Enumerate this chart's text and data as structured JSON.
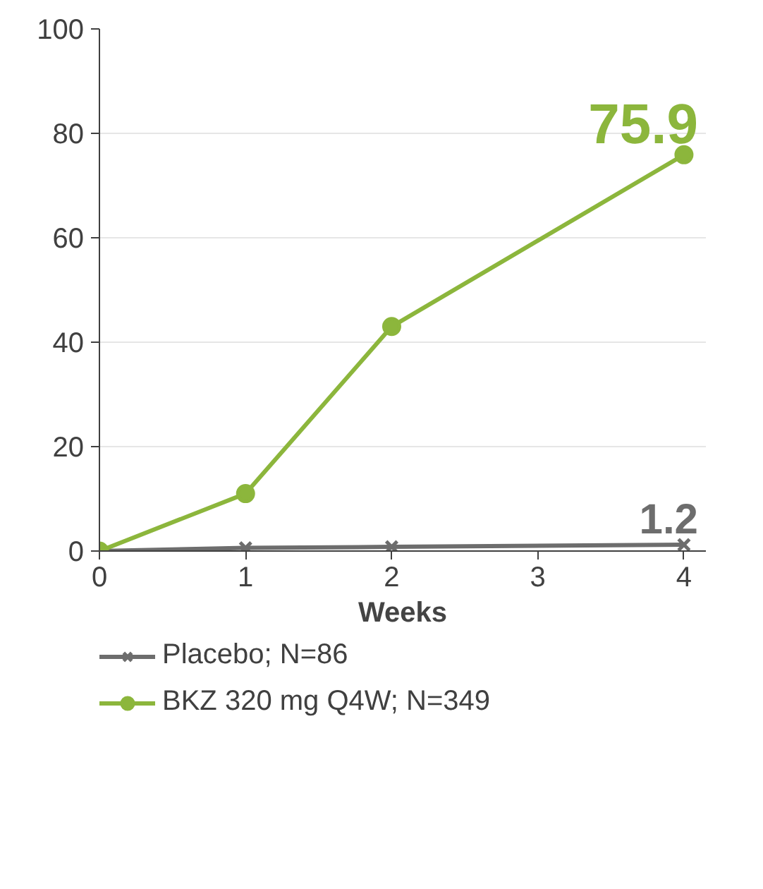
{
  "chart_data": {
    "type": "line",
    "xlabel": "Weeks",
    "x": [
      0,
      1,
      2,
      4
    ],
    "series": [
      {
        "name": "Placebo; N=86",
        "color": "#6d6d6d",
        "values": [
          0,
          0.6,
          0.8,
          1.2
        ],
        "marker": "cross"
      },
      {
        "name": "BKZ 320 mg Q4W; N=349",
        "color": "#8cb63c",
        "values": [
          0,
          11,
          43,
          75.9
        ],
        "marker": "circle"
      }
    ],
    "xlim": [
      0,
      4.15
    ],
    "xticks": [
      0,
      1,
      2,
      3,
      4
    ],
    "ylim": [
      0,
      100
    ],
    "yticks": [
      0,
      20,
      40,
      60,
      80,
      100
    ],
    "grid": "y",
    "legend": "bottom",
    "annotations": [
      {
        "text": "75.9",
        "x": 4,
        "y": 75.9
      },
      {
        "text": "1.2",
        "x": 4,
        "y": 1.2
      }
    ]
  }
}
